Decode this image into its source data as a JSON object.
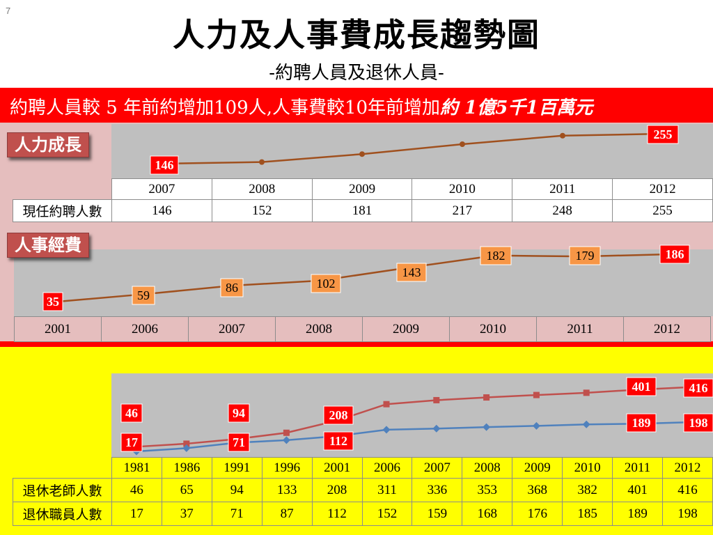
{
  "page_number": "7",
  "title": "人力及人事費成長趨勢圖",
  "subtitle": "-約聘人員及退休人員-",
  "banner": {
    "text_part1": "約聘人員較 5 年前約增加109人,人事費較10年前增加",
    "text_part2": "約 1億5千1百萬元"
  },
  "colors": {
    "banner": "#ff0000",
    "tag": "#c0504d",
    "line_brown": "#a0501e",
    "line_red": "#c0504d",
    "line_blue": "#4f81bd",
    "label_red": "#ff0000",
    "label_orange": "#f79646",
    "panel_pink": "#e5bebe",
    "panel_yellow": "#ffff00",
    "plot_gray": "#bfbfbf"
  },
  "chart_data": [
    {
      "type": "line",
      "label": "人力成長",
      "categories": [
        "2007",
        "2008",
        "2009",
        "2010",
        "2011",
        "2012"
      ],
      "series": [
        {
          "name": "現任約聘人數",
          "values": [
            146,
            152,
            181,
            217,
            248,
            255
          ]
        }
      ],
      "data_labels": [
        146,
        255
      ],
      "table": true
    },
    {
      "type": "line",
      "label": "人事經費",
      "categories": [
        "2001",
        "2006",
        "2007",
        "2008",
        "2009",
        "2010",
        "2011",
        "2012"
      ],
      "series": [
        {
          "values": [
            35,
            59,
            86,
            102,
            143,
            182,
            179,
            186
          ]
        }
      ],
      "data_labels": [
        35,
        59,
        86,
        102,
        143,
        182,
        179,
        186
      ]
    },
    {
      "type": "line",
      "categories": [
        "1981",
        "1986",
        "1991",
        "1996",
        "2001",
        "2006",
        "2007",
        "2008",
        "2009",
        "2010",
        "2011",
        "2012"
      ],
      "series": [
        {
          "name": "退休老師人數",
          "values": [
            46,
            65,
            94,
            133,
            208,
            311,
            336,
            353,
            368,
            382,
            401,
            416
          ]
        },
        {
          "name": "退休職員人數",
          "values": [
            17,
            37,
            71,
            87,
            112,
            152,
            159,
            168,
            176,
            185,
            189,
            198
          ]
        }
      ],
      "data_labels": {
        "teachers": [
          46,
          94,
          208,
          401,
          416
        ],
        "staff": [
          17,
          71,
          112,
          189,
          198
        ]
      },
      "table": true
    }
  ]
}
